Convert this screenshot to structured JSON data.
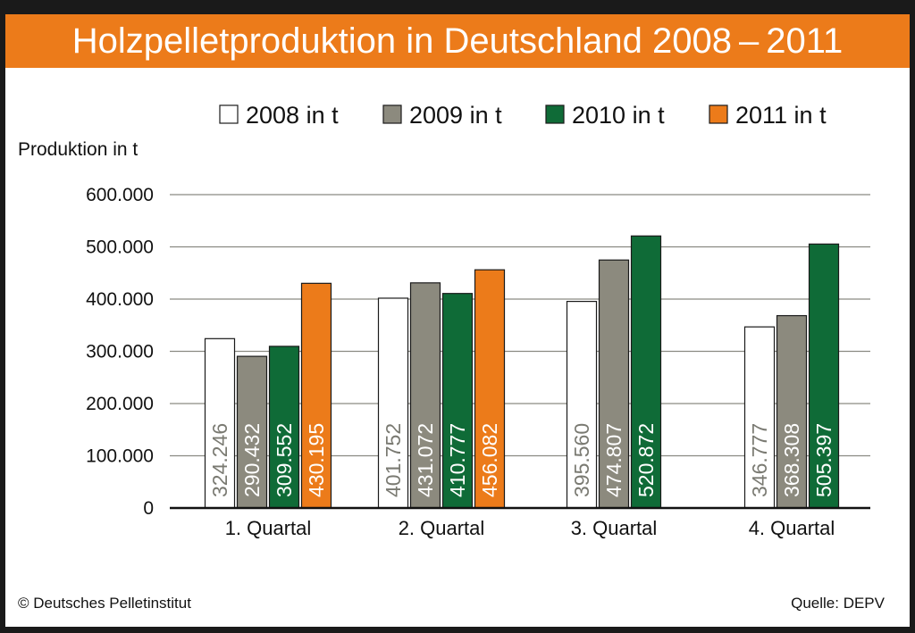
{
  "title": "Holzpelletproduktion in Deutschland 2008 – 2011",
  "footer": {
    "copyright": "© Deutsches Pelletinstitut",
    "source": "Quelle: DEPV"
  },
  "chart_data": {
    "type": "bar",
    "ylabel": "Produktion in t",
    "ylim": [
      0,
      600000
    ],
    "yticks": [
      0,
      100000,
      200000,
      300000,
      400000,
      500000,
      600000
    ],
    "ytick_labels": [
      "0",
      "100.000",
      "200.000",
      "300.000",
      "400.000",
      "500.000",
      "600.000"
    ],
    "grid": true,
    "legend_position": "top",
    "categories": [
      "1. Quartal",
      "2. Quartal",
      "3. Quartal",
      "4. Quartal"
    ],
    "series": [
      {
        "name": "2008 in t",
        "color": "#ffffff",
        "label_color": "#7a7a72",
        "values": [
          324246,
          401752,
          395560,
          346777
        ],
        "labels": [
          "324.246",
          "401.752",
          "395.560",
          "346.777"
        ]
      },
      {
        "name": "2009 in t",
        "color": "#8c8a7e",
        "label_color": "#ffffff",
        "values": [
          290432,
          431072,
          474807,
          368308
        ],
        "labels": [
          "290.432",
          "431.072",
          "474.807",
          "368.308"
        ]
      },
      {
        "name": "2010 in t",
        "color": "#0f6b37",
        "label_color": "#ffffff",
        "values": [
          309552,
          410777,
          520872,
          505397
        ],
        "labels": [
          "309.552",
          "410.777",
          "520.872",
          "505.397"
        ]
      },
      {
        "name": "2011 in t",
        "color": "#ec7b1a",
        "label_color": "#ffffff",
        "values": [
          430195,
          456082,
          null,
          null
        ],
        "labels": [
          "430.195",
          "456.082",
          null,
          null
        ]
      }
    ]
  }
}
